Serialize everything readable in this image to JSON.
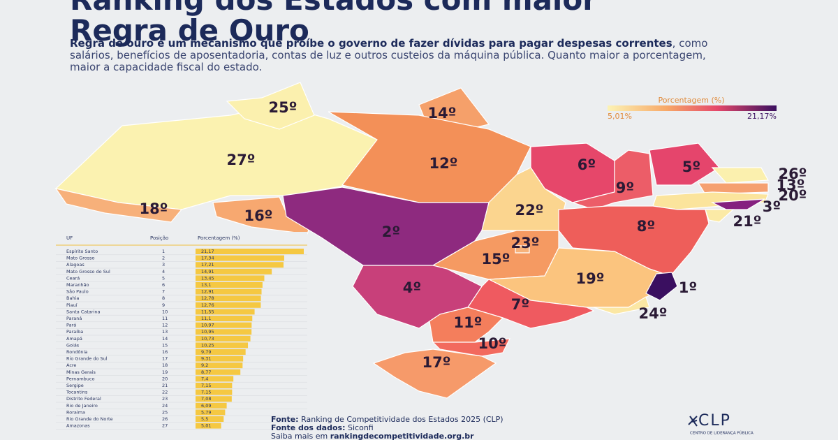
{
  "header": {
    "title": "Ranking dos Estados com maior Regra de Ouro",
    "description_bold": "Regra de ouro é um mecanismo que proíbe o governo de fazer dívidas para pagar despesas correntes",
    "description_regular": ", como salários, benefícios de aposentadoria, contas de luz e outros custeios da máquina pública. Quanto maior a porcentagem, maior a capacidade fiscal do estado."
  },
  "legend": {
    "title": "Porcentagem (%)",
    "min_label": "5,01%",
    "max_label": "21,17%"
  },
  "map": {
    "labels": [
      "27º",
      "25º",
      "14º",
      "12º",
      "18º",
      "16º",
      "2º",
      "6º",
      "22º",
      "9º",
      "5º",
      "26º",
      "13º",
      "20º",
      "3º",
      "21º",
      "8º",
      "15º",
      "23º",
      "19º",
      "1º",
      "24º",
      "4º",
      "7º",
      "11º",
      "10º",
      "17º"
    ]
  },
  "table": {
    "headers": [
      "UF",
      "Posição",
      "Porcentagem (%)"
    ],
    "rows": [
      [
        "Espírito Santo",
        1,
        {
          "value": 21.17,
          "label": "21,17"
        }
      ],
      [
        "Mato Grosso",
        2,
        {
          "value": 17.34,
          "label": "17,34"
        }
      ],
      [
        "Alagoas",
        3,
        {
          "value": 17.21,
          "label": "17,21"
        }
      ],
      [
        "Mato Grosso do Sul",
        4,
        {
          "value": 14.91,
          "label": "14,91"
        }
      ],
      [
        "Ceará",
        5,
        {
          "value": 13.45,
          "label": "13,45"
        }
      ],
      [
        "Maranhão",
        6,
        {
          "value": 13.1,
          "label": "13,1"
        }
      ],
      [
        "São Paulo",
        7,
        {
          "value": 12.91,
          "label": "12,91"
        }
      ],
      [
        "Bahia",
        8,
        {
          "value": 12.78,
          "label": "12,78"
        }
      ],
      [
        "Piauí",
        9,
        {
          "value": 12.76,
          "label": "12,76"
        }
      ],
      [
        "Santa Catarina",
        10,
        {
          "value": 11.55,
          "label": "11,55"
        }
      ],
      [
        "Paraná",
        11,
        {
          "value": 11.1,
          "label": "11,1"
        }
      ],
      [
        "Pará",
        12,
        {
          "value": 10.97,
          "label": "10,97"
        }
      ],
      [
        "Paraíba",
        13,
        {
          "value": 10.95,
          "label": "10,95"
        }
      ],
      [
        "Amapá",
        14,
        {
          "value": 10.73,
          "label": "10,73"
        }
      ],
      [
        "Goiás",
        15,
        {
          "value": 10.25,
          "label": "10,25"
        }
      ],
      [
        "Rondônia",
        16,
        {
          "value": 9.79,
          "label": "9,79"
        }
      ],
      [
        "Rio Grande do Sul",
        17,
        {
          "value": 9.31,
          "label": "9,31"
        }
      ],
      [
        "Acre",
        18,
        {
          "value": 9.2,
          "label": "9,2"
        }
      ],
      [
        "Minas Gerais",
        19,
        {
          "value": 8.77,
          "label": "8,77"
        }
      ],
      [
        "Pernambuco",
        20,
        {
          "value": 7.4,
          "label": "7,4"
        }
      ],
      [
        "Sergipe",
        21,
        {
          "value": 7.15,
          "label": "7,15"
        }
      ],
      [
        "Tocantins",
        22,
        {
          "value": 7.15,
          "label": "7,15"
        }
      ],
      [
        "Distrito Federal",
        23,
        {
          "value": 7.08,
          "label": "7,08"
        }
      ],
      [
        "Rio de Janeiro",
        24,
        {
          "value": 6.09,
          "label": "6,09"
        }
      ],
      [
        "Roraima",
        25,
        {
          "value": 5.79,
          "label": "5,79"
        }
      ],
      [
        "Rio Grande do Norte",
        26,
        {
          "value": 5.5,
          "label": "5,5"
        }
      ],
      [
        "Amazonas",
        27,
        {
          "value": 5.01,
          "label": "5,01"
        }
      ]
    ]
  },
  "footer": {
    "source_label": "Fonte:",
    "source": "Ranking de Competitividade dos Estados 2025 (CLP)",
    "data_source_label": "Fonte dos dados:",
    "data_source": "Siconfi",
    "more_label": "Saiba mais em",
    "more_link": "rankingdecompetitividade.org.br",
    "logo": "CLP",
    "logo_subtitle": "CENTRO DE LIDERANÇA PÚBLICA"
  }
}
